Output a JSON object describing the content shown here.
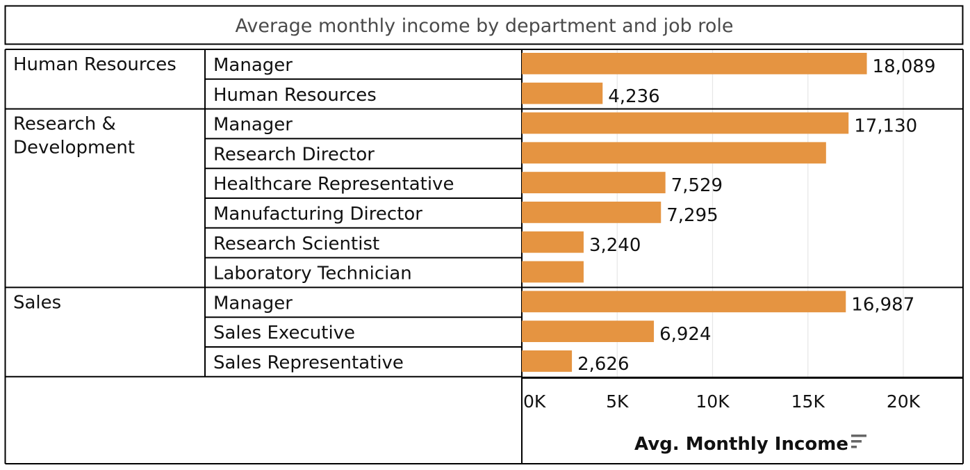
{
  "chart_data": {
    "type": "bar",
    "orientation": "horizontal",
    "title": "Average monthly income by department and job role",
    "xlabel": "Avg. Monthly Income",
    "ylabel": "",
    "xlim": [
      0,
      20000
    ],
    "tick_values": [
      0,
      5000,
      10000,
      15000,
      20000
    ],
    "tick_labels": [
      "0K",
      "5K",
      "10K",
      "15K",
      "20K"
    ],
    "grid": true,
    "sort_icon": "sort-descending-icon",
    "bar_color": "#E59441",
    "groups": [
      {
        "department": "Human Resources",
        "roles": [
          {
            "role": "Manager",
            "value": 18089,
            "label": "18,089"
          },
          {
            "role": "Human Resources",
            "value": 4236,
            "label": "4,236"
          }
        ]
      },
      {
        "department": "Research & Development",
        "department_lines": [
          "Research &",
          "Development"
        ],
        "roles": [
          {
            "role": "Manager",
            "value": 17130,
            "label": "17,130"
          },
          {
            "role": "Research Director",
            "value": 15950,
            "label": ""
          },
          {
            "role": "Healthcare Representative",
            "value": 7529,
            "label": "7,529"
          },
          {
            "role": "Manufacturing Director",
            "value": 7295,
            "label": "7,295"
          },
          {
            "role": "Research Scientist",
            "value": 3240,
            "label": "3,240"
          },
          {
            "role": "Laboratory Technician",
            "value": 3240,
            "label": ""
          }
        ]
      },
      {
        "department": "Sales",
        "roles": [
          {
            "role": "Manager",
            "value": 16987,
            "label": "16,987"
          },
          {
            "role": "Sales Executive",
            "value": 6924,
            "label": "6,924"
          },
          {
            "role": "Sales Representative",
            "value": 2626,
            "label": "2,626"
          }
        ]
      }
    ]
  }
}
